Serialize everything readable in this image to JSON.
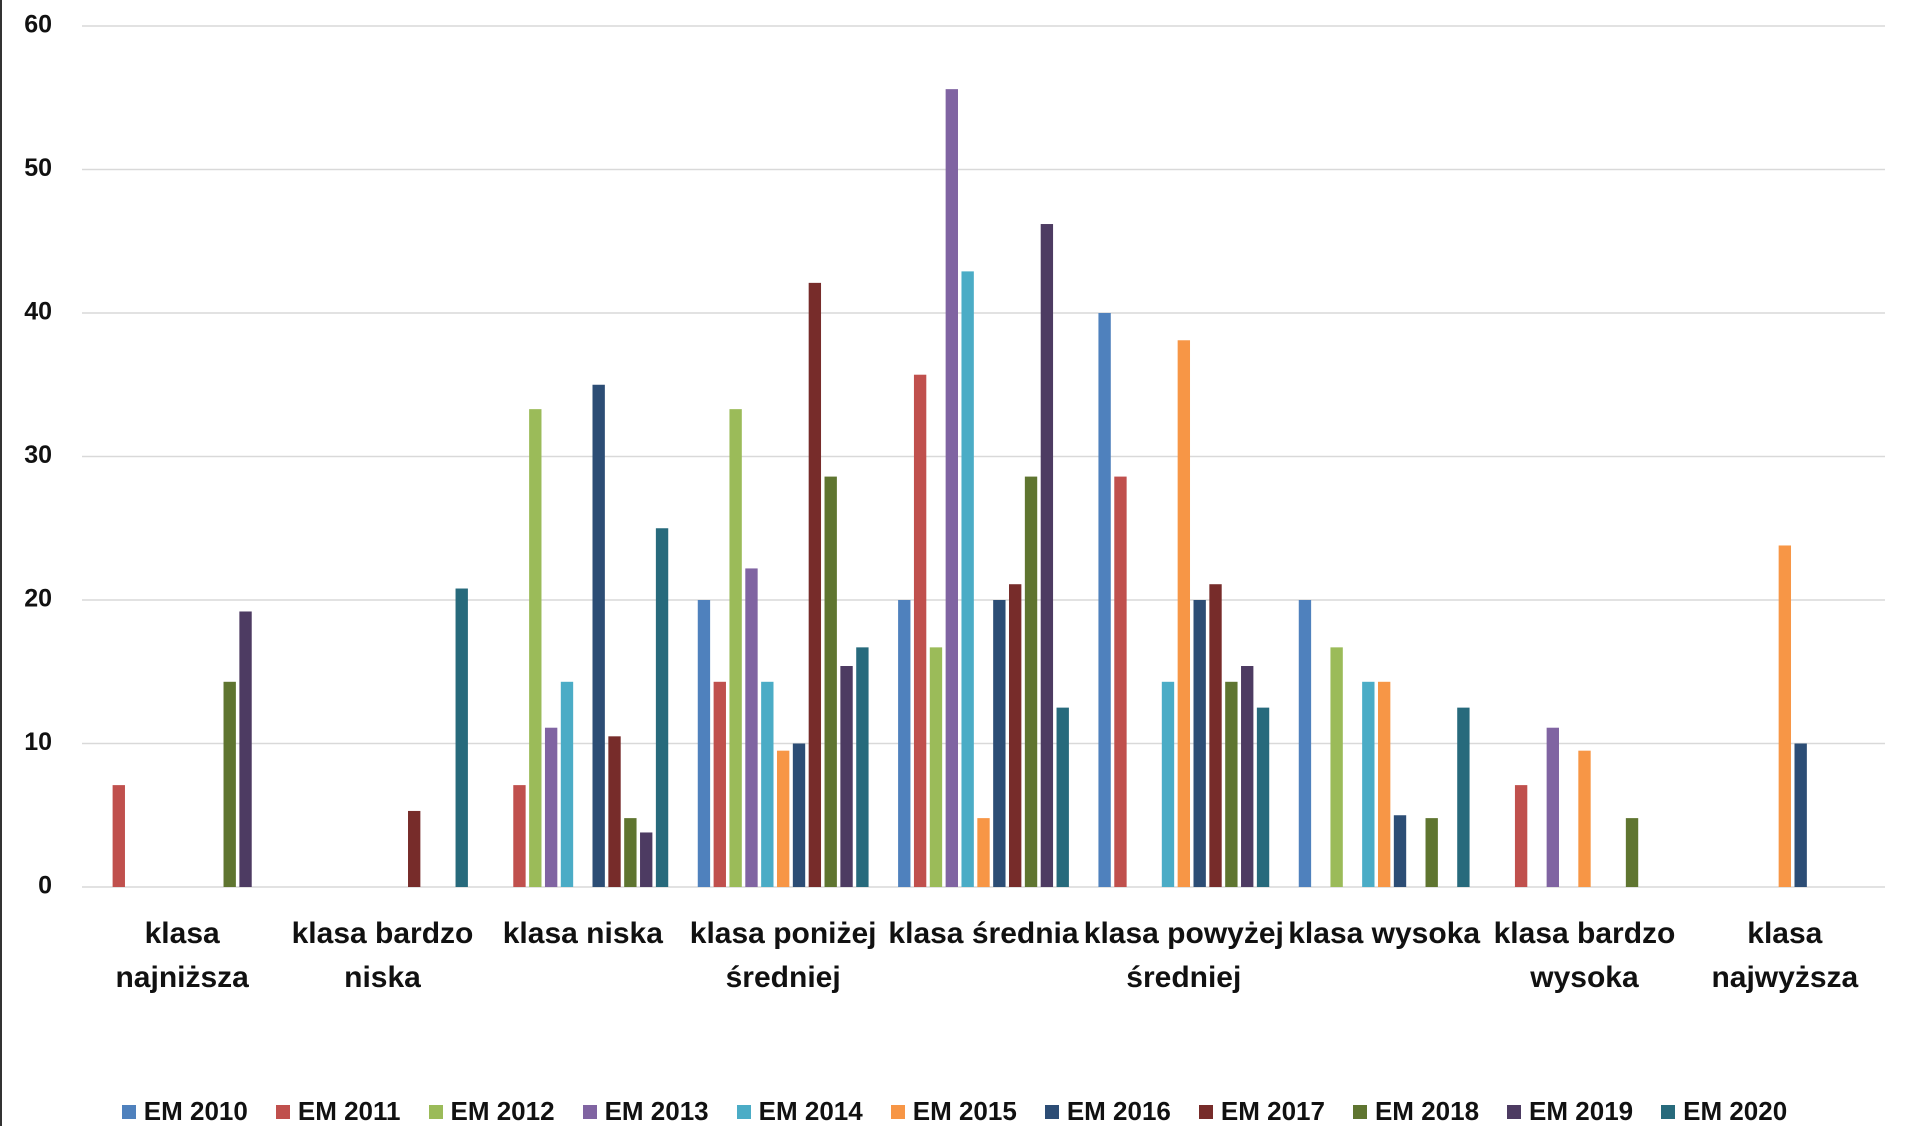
{
  "chart_data": {
    "type": "bar",
    "categories": [
      "klasa najniższa",
      "klasa bardzo niska",
      "klasa niska",
      "klasa poniżej średniej",
      "klasa średnia",
      "klasa powyżej średniej",
      "klasa wysoka",
      "klasa bardzo wysoka",
      "klasa najwyższa"
    ],
    "series": [
      {
        "name": "EM 2010",
        "color": "#4f81bd",
        "values": [
          0,
          0,
          0,
          20,
          20,
          40,
          20,
          0,
          0
        ]
      },
      {
        "name": "EM 2011",
        "color": "#c0504d",
        "values": [
          7.1,
          0,
          7.1,
          14.3,
          35.7,
          28.6,
          0,
          7.1,
          0
        ]
      },
      {
        "name": "EM 2012",
        "color": "#9bbb59",
        "values": [
          0,
          0,
          33.3,
          33.3,
          16.7,
          0,
          16.7,
          0,
          0
        ]
      },
      {
        "name": "EM 2013",
        "color": "#8064a2",
        "values": [
          0,
          0,
          11.1,
          22.2,
          55.6,
          0,
          0,
          11.1,
          0
        ]
      },
      {
        "name": "EM 2014",
        "color": "#4bacc6",
        "values": [
          0,
          0,
          14.3,
          14.3,
          42.9,
          14.3,
          14.3,
          0,
          0
        ]
      },
      {
        "name": "EM 2015",
        "color": "#f79646",
        "values": [
          0,
          0,
          0,
          9.5,
          4.8,
          38.1,
          14.3,
          9.5,
          23.8
        ]
      },
      {
        "name": "EM 2016",
        "color": "#2c4d75",
        "values": [
          0,
          0,
          35,
          10,
          20,
          20,
          5,
          0,
          10
        ]
      },
      {
        "name": "EM 2017",
        "color": "#772c2a",
        "values": [
          0,
          5.3,
          10.5,
          42.1,
          21.1,
          21.1,
          0,
          0,
          0
        ]
      },
      {
        "name": "EM 2018",
        "color": "#5f7530",
        "values": [
          14.3,
          0,
          4.8,
          28.6,
          28.6,
          14.3,
          4.8,
          4.8,
          0
        ]
      },
      {
        "name": "EM 2019",
        "color": "#4d3b62",
        "values": [
          19.2,
          0,
          3.8,
          15.4,
          46.2,
          15.4,
          0,
          0,
          0
        ]
      },
      {
        "name": "EM 2020",
        "color": "#276a7c",
        "values": [
          0,
          20.8,
          25,
          16.7,
          12.5,
          12.5,
          12.5,
          0,
          0
        ]
      }
    ],
    "ylim": [
      0,
      60
    ],
    "yticks": [
      0,
      10,
      20,
      30,
      40,
      50,
      60
    ],
    "grid": true,
    "legend": "bottom"
  }
}
